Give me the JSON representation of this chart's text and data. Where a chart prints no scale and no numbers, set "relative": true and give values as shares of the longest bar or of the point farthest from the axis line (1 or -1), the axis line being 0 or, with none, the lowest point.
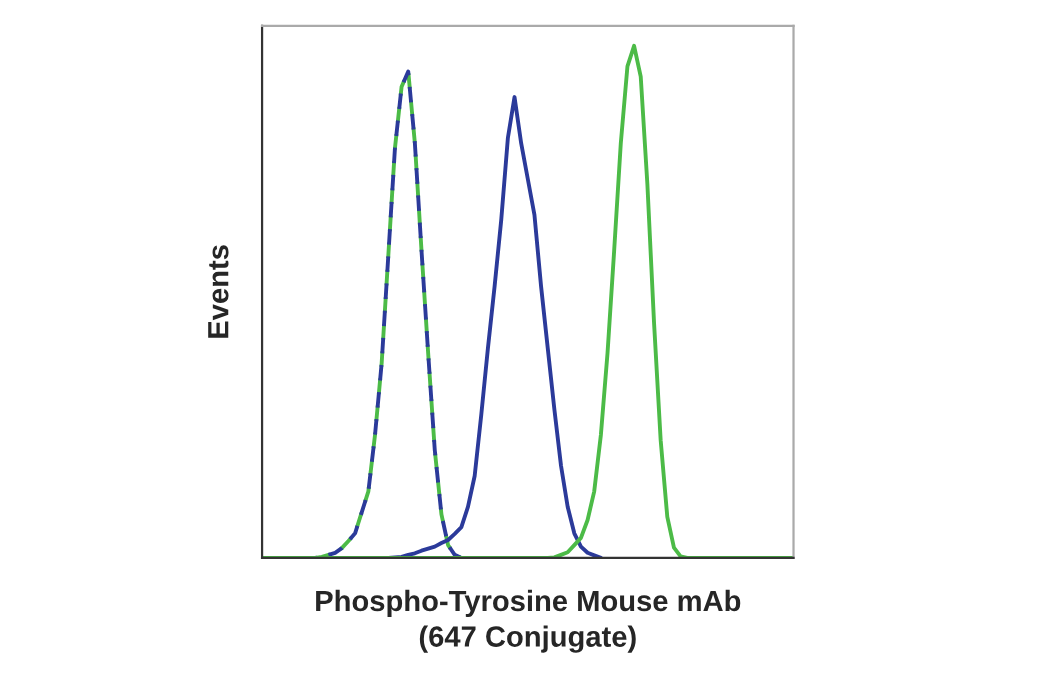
{
  "chart_data": {
    "type": "line",
    "relative": true,
    "xlabel": "Phospho-Tyrosine Mouse mAb\n(647 Conjugate)",
    "ylabel": "Events",
    "categories": [
      null,
      null,
      null,
      null,
      null,
      null,
      null,
      null,
      null,
      null,
      null,
      null,
      null,
      null,
      null,
      null,
      null,
      null,
      null,
      null,
      null,
      null,
      null,
      null,
      null,
      null,
      null,
      null,
      null,
      null,
      null,
      null,
      null,
      null,
      null,
      null,
      null,
      null,
      null,
      null,
      null,
      null,
      null,
      null,
      null,
      null,
      null,
      null,
      null,
      null,
      null,
      null,
      null,
      null,
      null,
      null,
      null,
      null,
      null,
      null,
      null,
      null,
      null,
      null,
      null,
      null,
      null,
      null,
      null,
      null,
      null,
      null,
      null,
      null,
      null,
      null,
      null,
      null,
      null,
      null,
      null
    ],
    "grid": false,
    "legend": false,
    "series": [
      {
        "color": "#4cbb47",
        "line_style": "dashed",
        "values": [
          null,
          null,
          null,
          null,
          null,
          null,
          null,
          null,
          0,
          0.002,
          0.006,
          0.01,
          0.019,
          0.033,
          0.048,
          0.089,
          0.13,
          0.24,
          0.38,
          0.59,
          0.8,
          0.92,
          0.95,
          0.81,
          0.6,
          0.4,
          0.21,
          0.085,
          0.025,
          0.006,
          0,
          null,
          null,
          null,
          null,
          null,
          null,
          null,
          null,
          null,
          null,
          null,
          null,
          null,
          null,
          null,
          null,
          null,
          null,
          null,
          null,
          null,
          null,
          null,
          null,
          null,
          null,
          null,
          null,
          null,
          null,
          null,
          null,
          null,
          null,
          null,
          null,
          null,
          null,
          null,
          null,
          null,
          null,
          null,
          null,
          null,
          null,
          null,
          null,
          null,
          null
        ]
      },
      {
        "color": "#2b3a9a",
        "line_style": "dashed",
        "values": [
          null,
          null,
          null,
          null,
          null,
          null,
          null,
          null,
          0,
          0.002,
          0.006,
          0.01,
          0.019,
          0.033,
          0.048,
          0.089,
          0.13,
          0.24,
          0.38,
          0.59,
          0.8,
          0.92,
          0.95,
          0.81,
          0.6,
          0.4,
          0.21,
          0.085,
          0.025,
          0.006,
          0,
          null,
          null,
          null,
          null,
          null,
          null,
          null,
          null,
          null,
          null,
          null,
          null,
          null,
          null,
          null,
          null,
          null,
          null,
          null,
          null,
          null,
          null,
          null,
          null,
          null,
          null,
          null,
          null,
          null,
          null,
          null,
          null,
          null,
          null,
          null,
          null,
          null,
          null,
          null,
          null,
          null,
          null,
          null,
          null,
          null,
          null,
          null,
          null,
          null,
          null
        ]
      },
      {
        "color": "#2b3a9a",
        "line_style": "solid",
        "values": [
          null,
          null,
          null,
          null,
          null,
          null,
          null,
          null,
          null,
          null,
          null,
          null,
          null,
          null,
          null,
          null,
          null,
          null,
          null,
          0,
          0.001,
          0.002,
          0.006,
          0.009,
          0.014,
          0.018,
          0.022,
          0.029,
          0.035,
          0.047,
          0.06,
          0.1,
          0.16,
          0.28,
          0.41,
          0.53,
          0.66,
          0.82,
          0.9,
          0.81,
          0.74,
          0.67,
          0.53,
          0.41,
          0.29,
          0.18,
          0.1,
          0.048,
          0.022,
          0.01,
          0.005,
          0,
          null,
          null,
          null,
          null,
          null,
          null,
          null,
          null,
          null,
          null,
          null,
          null,
          null,
          null,
          null,
          null,
          null,
          null,
          null,
          null,
          null,
          null,
          null,
          null,
          null,
          null,
          null,
          null,
          null
        ]
      },
      {
        "color": "#4cbb47",
        "line_style": "solid",
        "values": [
          0,
          0,
          0,
          0,
          0,
          0,
          0,
          0,
          0,
          0,
          0,
          0,
          0,
          0,
          0,
          0,
          0,
          0,
          0,
          0,
          0,
          0,
          0,
          0,
          0,
          0,
          0,
          0,
          0,
          0,
          0,
          0,
          0,
          0,
          0,
          0,
          0,
          0,
          0,
          0,
          0,
          0,
          0,
          0,
          0.001,
          0.006,
          0.011,
          0.025,
          0.039,
          0.074,
          0.13,
          0.24,
          0.4,
          0.6,
          0.81,
          0.96,
          1,
          0.94,
          0.73,
          0.46,
          0.23,
          0.08,
          0.02,
          0.003,
          0,
          0,
          0,
          0,
          0,
          0,
          0,
          0,
          0,
          0,
          0,
          0,
          0,
          0,
          0,
          0,
          0
        ]
      }
    ]
  }
}
